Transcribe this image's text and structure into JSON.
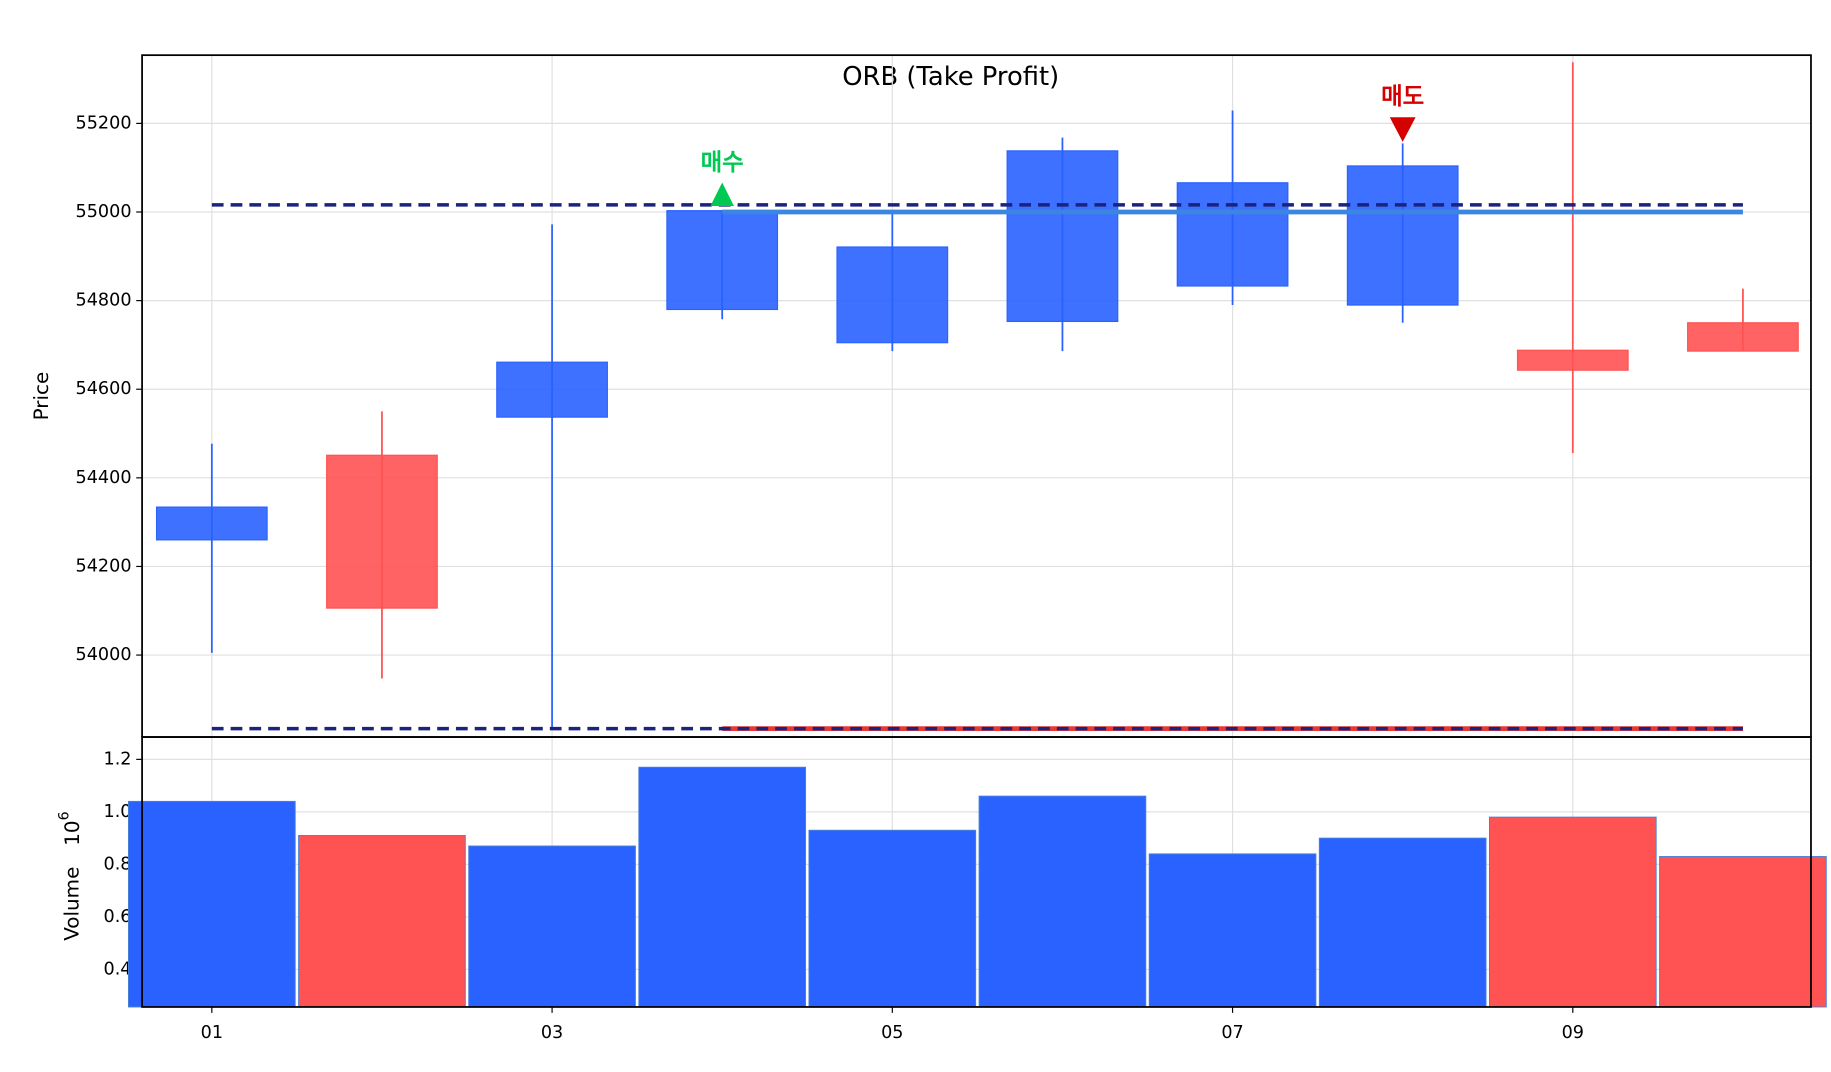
{
  "chart_data": {
    "type": "candlestick",
    "title": "ORB (Take Profit)",
    "x": [
      1,
      2,
      3,
      4,
      5,
      6,
      7,
      8,
      9,
      10
    ],
    "open": [
      54260,
      54451,
      54537,
      54780,
      54705,
      54753,
      54833,
      54790,
      54688,
      54750
    ],
    "high": [
      54477,
      54550,
      54972,
      55003,
      55000,
      55168,
      55229,
      55155,
      55338,
      54827
    ],
    "low": [
      54005,
      53947,
      53837,
      54758,
      54686,
      54686,
      54790,
      54750,
      54456,
      54686
    ],
    "close": [
      54334,
      54106,
      54661,
      55003,
      54921,
      55138,
      55066,
      55104,
      54643,
      54686
    ],
    "volume": [
      1.04,
      0.91,
      0.87,
      1.17,
      0.93,
      1.06,
      0.84,
      0.9,
      0.98,
      0.83
    ],
    "up_color": "#2962ff",
    "down_color": "#ff5252",
    "xlim": [
      0.59,
      10.4
    ],
    "xticks": [
      {
        "value": 1,
        "label": "01"
      },
      {
        "value": 3,
        "label": "03"
      },
      {
        "value": 5,
        "label": "05"
      },
      {
        "value": 7,
        "label": "07"
      },
      {
        "value": 9,
        "label": "09"
      }
    ],
    "ylabel": "Price",
    "ylim": [
      53815,
      55354
    ],
    "yticks": [
      54000,
      54200,
      54400,
      54600,
      54800,
      55000,
      55200
    ],
    "volume_ylabel": "Volume",
    "volume_offset": {
      "base": "10",
      "exponent": "6"
    },
    "volume_ylim": [
      0.257,
      1.285
    ],
    "volume_yticks": [
      0.4,
      0.6,
      0.8,
      {
        "value": 1,
        "label": "1.0"
      },
      1.2
    ],
    "grid": true,
    "hlines": [
      {
        "y": 55000,
        "x": [
          4,
          10
        ],
        "color": "#3a86e0",
        "style": "solid"
      },
      {
        "y": 53834,
        "x": [
          4,
          10
        ],
        "color": "#e53935",
        "style": "solid"
      },
      {
        "y": 55016,
        "x": [
          1,
          10
        ],
        "color": "#1a237e",
        "style": "dashed"
      },
      {
        "y": 53834,
        "x": [
          1,
          10
        ],
        "color": "#1a237e",
        "style": "dashed"
      }
    ],
    "markers": [
      {
        "x": 4,
        "y": 55003,
        "label": "매수",
        "color": "#00c853",
        "direction": "up"
      },
      {
        "x": 8,
        "y": 55190,
        "label": "매도",
        "color": "#d50000",
        "direction": "down"
      }
    ]
  }
}
